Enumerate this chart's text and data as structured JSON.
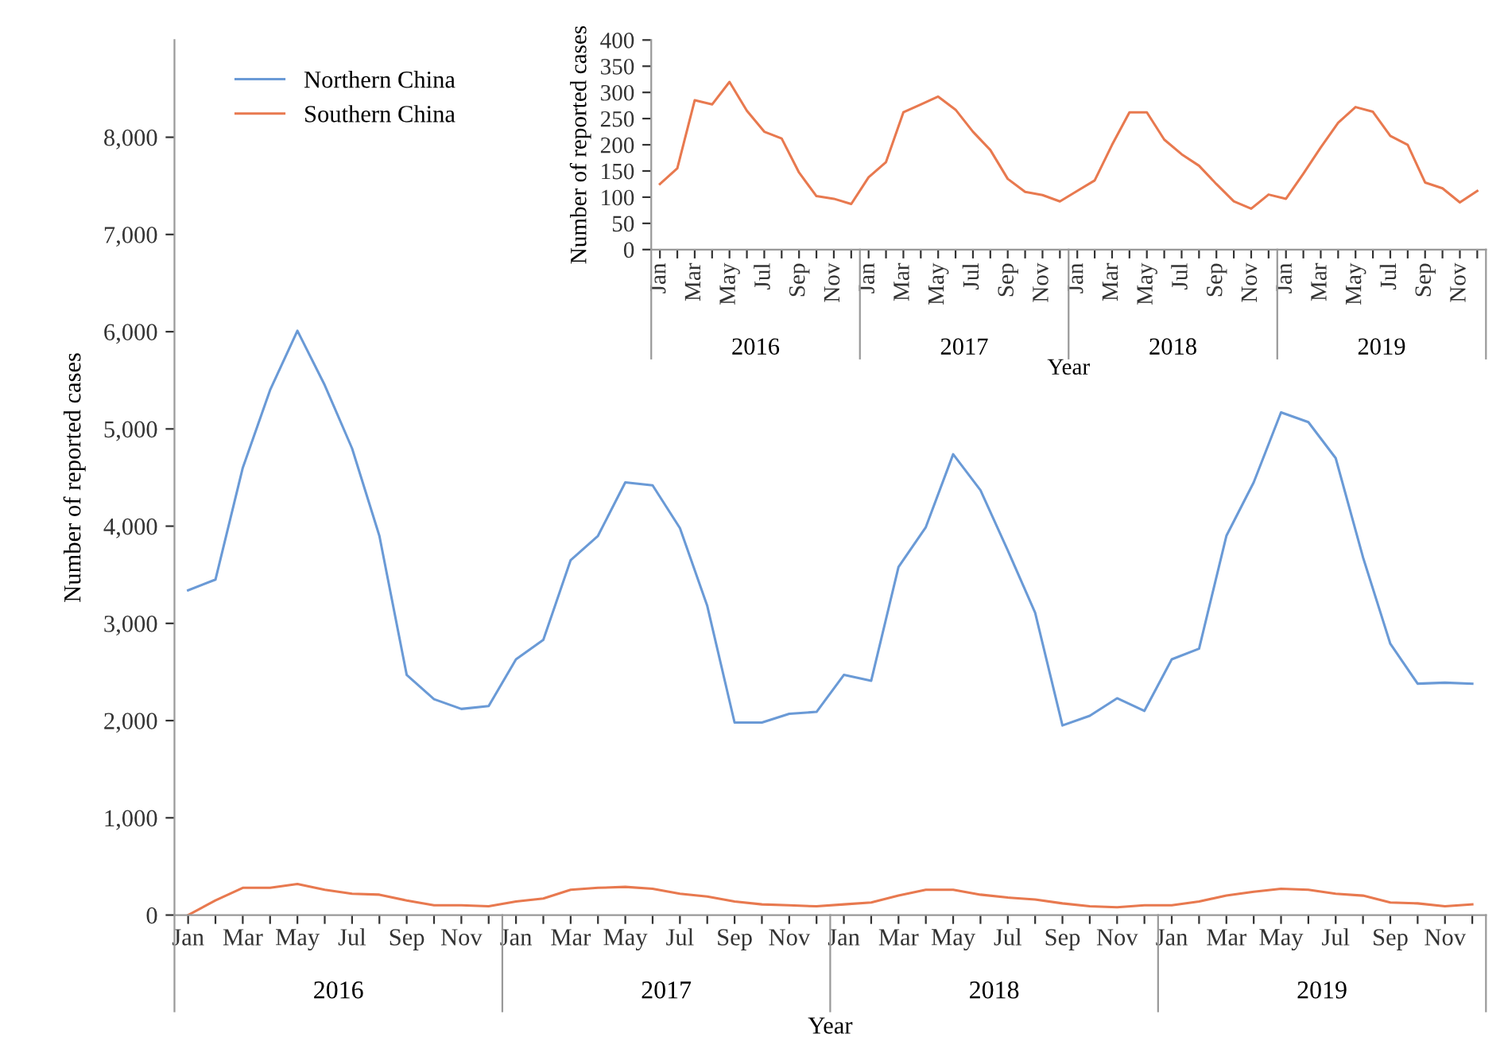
{
  "chart_data": [
    {
      "type": "line",
      "xlabel": "Year",
      "ylabel": "Number of reported cases",
      "legend": "top left",
      "grid": false,
      "marker": "none",
      "line_style": "solid",
      "categories": [
        "Jan",
        null,
        "Mar",
        null,
        "May",
        null,
        "Jul",
        null,
        "Sep",
        null,
        "Nov",
        null,
        "Jan",
        null,
        "Mar",
        null,
        "May",
        null,
        "Jul",
        null,
        "Sep",
        null,
        "Nov",
        null,
        "Jan",
        null,
        "Mar",
        null,
        "May",
        null,
        "Jul",
        null,
        "Sep",
        null,
        "Nov",
        null,
        "Jan",
        null,
        "Mar",
        null,
        "May",
        null,
        "Jul",
        null,
        "Sep",
        null,
        "Nov",
        null
      ],
      "ylim": [
        0,
        9000
      ],
      "yticks": [
        {
          "value": 0,
          "label": "0"
        },
        {
          "value": 1000,
          "label": "1,000"
        },
        {
          "value": 2000,
          "label": "2,000"
        },
        {
          "value": 3000,
          "label": "3,000"
        },
        {
          "value": 4000,
          "label": "4,000"
        },
        {
          "value": 5000,
          "label": "5,000"
        },
        {
          "value": 6000,
          "label": "6,000"
        },
        {
          "value": 7000,
          "label": "7,000"
        },
        {
          "value": 8000,
          "label": "8,000"
        }
      ],
      "annotations": [
        "2016",
        "2017",
        "2018",
        "2019"
      ],
      "series": [
        {
          "name": "Northern China",
          "color": "#6a9ad6",
          "values": [
            3340,
            3450,
            4600,
            5400,
            6010,
            5450,
            4800,
            3900,
            2470,
            2220,
            2120,
            2150,
            2630,
            2830,
            3650,
            3900,
            4450,
            4420,
            3980,
            3180,
            1980,
            1980,
            2070,
            2090,
            2470,
            2410,
            3580,
            3990,
            4740,
            4370,
            3750,
            3110,
            1950,
            2050,
            2230,
            2100,
            2630,
            2740,
            3900,
            4450,
            5170,
            5070,
            4700,
            3680,
            2790,
            2380,
            2390,
            2380
          ]
        },
        {
          "name": "Southern China",
          "color": "#e8794f",
          "values": [
            0,
            150,
            280,
            280,
            320,
            260,
            220,
            210,
            150,
            100,
            100,
            90,
            140,
            170,
            260,
            280,
            290,
            270,
            220,
            190,
            140,
            110,
            100,
            90,
            110,
            130,
            200,
            260,
            260,
            210,
            180,
            160,
            120,
            90,
            80,
            100,
            100,
            140,
            200,
            240,
            270,
            260,
            220,
            200,
            130,
            120,
            90,
            110
          ]
        }
      ]
    },
    {
      "type": "line",
      "xlabel": "Year",
      "ylabel": "Number of reported cases",
      "grid": false,
      "marker": "none",
      "line_style": "solid",
      "categories": [
        "Jan",
        null,
        "Mar",
        null,
        "May",
        null,
        "Jul",
        null,
        "Sep",
        null,
        "Nov",
        null,
        "Jan",
        null,
        "Mar",
        null,
        "May",
        null,
        "Jul",
        null,
        "Sep",
        null,
        "Nov",
        null,
        "Jan",
        null,
        "Mar",
        null,
        "May",
        null,
        "Jul",
        null,
        "Sep",
        null,
        "Nov",
        null,
        "Jan",
        null,
        "Mar",
        null,
        "May",
        null,
        "Jul",
        null,
        "Sep",
        null,
        "Nov",
        null
      ],
      "ylim": [
        0,
        400
      ],
      "yticks": [
        0,
        50,
        100,
        150,
        200,
        250,
        300,
        350,
        400
      ],
      "annotations": [
        "2016",
        "2017",
        "2018",
        "2019"
      ],
      "series": [
        {
          "color": "#e8794f",
          "values": [
            125,
            155,
            285,
            277,
            320,
            265,
            225,
            212,
            147,
            102,
            97,
            87,
            138,
            167,
            262,
            277,
            292,
            267,
            225,
            190,
            135,
            110,
            104,
            92,
            112,
            132,
            200,
            262,
            262,
            210,
            182,
            160,
            125,
            92,
            78,
            105,
            97,
            145,
            195,
            242,
            272,
            263,
            217,
            200,
            128,
            117,
            90,
            112
          ]
        }
      ]
    }
  ]
}
